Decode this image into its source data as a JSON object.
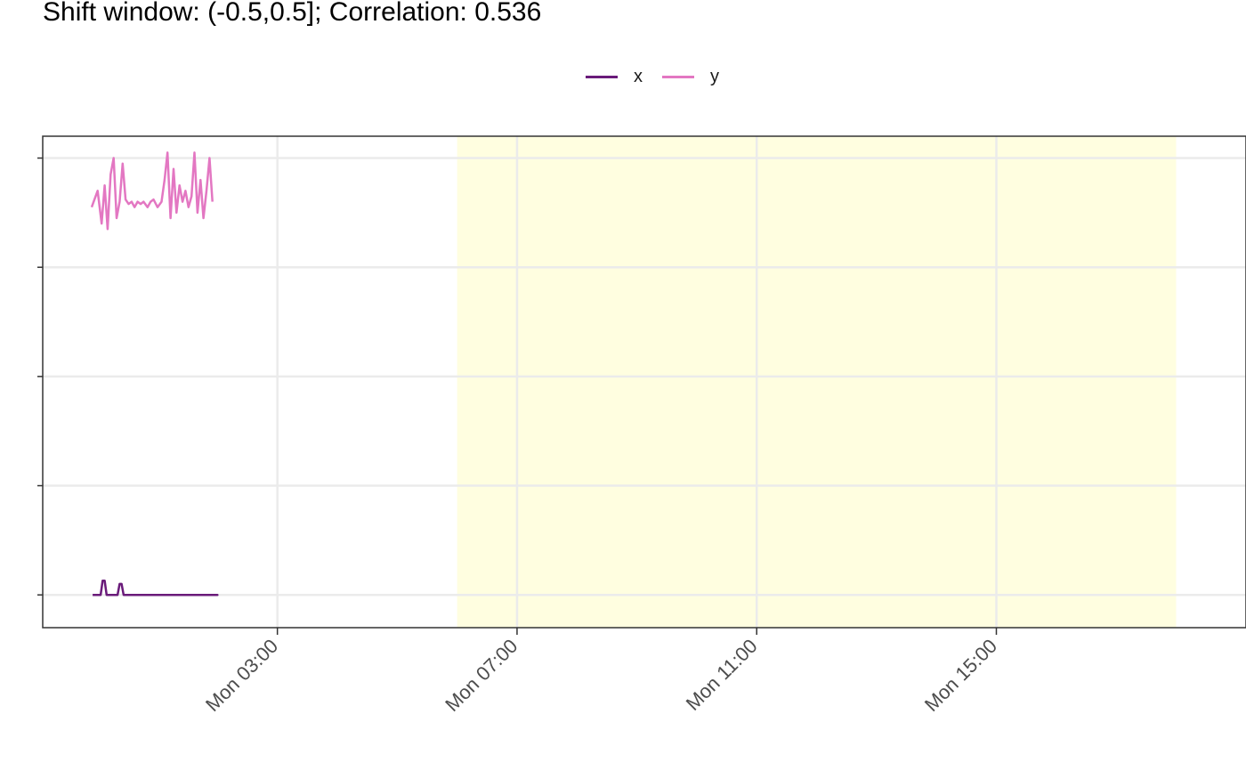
{
  "chart_data": {
    "type": "line",
    "title": "Shift window: (-0.5,0.5]; Correlation: 0.536",
    "xlabel": "",
    "ylabel": "",
    "x_axis": {
      "kind": "time",
      "range": [
        "Sun 23:05",
        "Mon 19:10"
      ],
      "ticks": [
        "Mon 03:00",
        "Mon 07:00",
        "Mon 11:00",
        "Mon 15:00"
      ]
    },
    "y_axis": {
      "range": [
        -0.3,
        4.2
      ],
      "ticks_labeled": false
    },
    "highlight_window": {
      "start": "Mon 06:00",
      "end": "Mon 18:00",
      "color": "#FFFEE0"
    },
    "legend": {
      "position": "top",
      "entries": [
        "x",
        "y"
      ]
    },
    "grid": true,
    "series": [
      {
        "name": "x",
        "color": "#6A1B7A",
        "x": [
          "Sun 23:55",
          "Mon 00:03",
          "Mon 00:05",
          "Mon 00:07",
          "Mon 00:09",
          "Mon 00:20",
          "Mon 00:22",
          "Mon 00:24",
          "Mon 00:26",
          "Mon 01:00",
          "Mon 02:00",
          "Mon 01:53"
        ],
        "y": [
          0.0,
          0.0,
          0.13,
          0.13,
          0.0,
          0.0,
          0.1,
          0.1,
          0.0,
          0.0,
          0.0,
          0.0
        ]
      },
      {
        "name": "y",
        "color": "#E377C2",
        "x": [
          "Sun 23:54",
          "Mon 00:00",
          "Mon 00:04",
          "Mon 00:07",
          "Mon 00:10",
          "Mon 00:13",
          "Mon 00:16",
          "Mon 00:19",
          "Mon 00:22",
          "Mon 00:25",
          "Mon 00:28",
          "Mon 00:31",
          "Mon 00:34",
          "Mon 00:37",
          "Mon 00:40",
          "Mon 00:43",
          "Mon 00:46",
          "Mon 00:50",
          "Mon 00:53",
          "Mon 00:56",
          "Mon 01:00",
          "Mon 01:04",
          "Mon 01:07",
          "Mon 01:10",
          "Mon 01:13",
          "Mon 01:16",
          "Mon 01:19",
          "Mon 01:22",
          "Mon 01:25",
          "Mon 01:28",
          "Mon 01:31",
          "Mon 01:34",
          "Mon 01:37",
          "Mon 01:40",
          "Mon 01:43",
          "Mon 01:46",
          "Mon 01:49",
          "Mon 01:52",
          "Mon 01:55"
        ],
        "y": [
          3.55,
          3.7,
          3.4,
          3.75,
          3.35,
          3.85,
          4.0,
          3.45,
          3.6,
          3.95,
          3.62,
          3.58,
          3.6,
          3.55,
          3.6,
          3.58,
          3.6,
          3.55,
          3.6,
          3.62,
          3.55,
          3.6,
          3.8,
          4.05,
          3.45,
          3.9,
          3.5,
          3.75,
          3.6,
          3.7,
          3.55,
          3.65,
          4.05,
          3.5,
          3.8,
          3.45,
          3.7,
          4.0,
          3.6
        ]
      }
    ]
  }
}
